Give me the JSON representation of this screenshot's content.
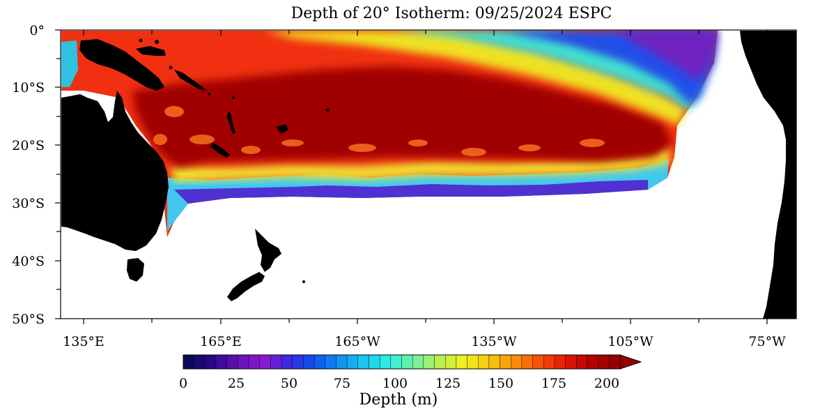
{
  "title": "Depth of 20° Isotherm: 09/25/2024 ESPC",
  "axes": {
    "lat_labels": [
      "0°",
      "10°S",
      "20°S",
      "30°S",
      "40°S",
      "50°S"
    ],
    "lon_labels": [
      "135°E",
      "165°E",
      "165°W",
      "135°W",
      "105°W",
      "75°W"
    ]
  },
  "colorbar": {
    "tick_labels": [
      "0",
      "25",
      "50",
      "75",
      "100",
      "125",
      "150",
      "175",
      "200"
    ],
    "label": "Depth (m)",
    "range": [
      0,
      200
    ],
    "extend": "max"
  },
  "colors": {
    "land": "#000000",
    "ocean_no_data": "#ffffff",
    "colormap": [
      "#0a0a5a",
      "#2a0a8a",
      "#6a10b8",
      "#8a1ad0",
      "#3a2ae0",
      "#1050f0",
      "#1090f0",
      "#18c8f0",
      "#30f0e0",
      "#70f0a0",
      "#b8f050",
      "#f0f020",
      "#f8c810",
      "#f89008",
      "#f85008",
      "#e81808",
      "#b80000",
      "#980000"
    ]
  }
}
